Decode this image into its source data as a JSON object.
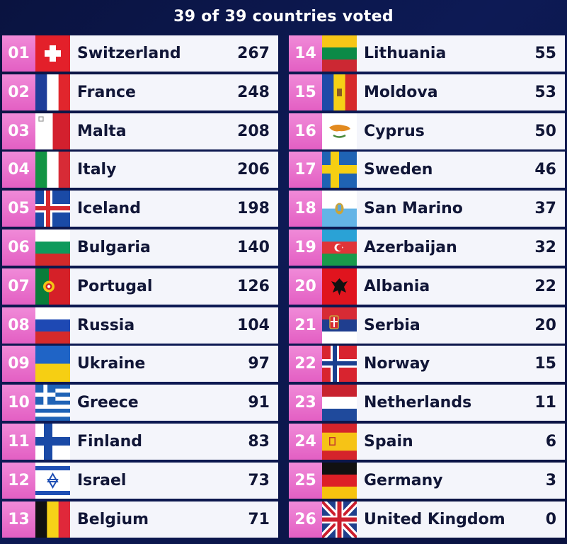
{
  "header": {
    "title": "39 of 39 countries voted"
  },
  "left": [
    {
      "rank": "01",
      "country": "Switzerland",
      "points": "267",
      "flag": "switzerland-flag-icon"
    },
    {
      "rank": "02",
      "country": "France",
      "points": "248",
      "flag": "france-flag-icon"
    },
    {
      "rank": "03",
      "country": "Malta",
      "points": "208",
      "flag": "malta-flag-icon"
    },
    {
      "rank": "04",
      "country": "Italy",
      "points": "206",
      "flag": "italy-flag-icon"
    },
    {
      "rank": "05",
      "country": "Iceland",
      "points": "198",
      "flag": "iceland-flag-icon"
    },
    {
      "rank": "06",
      "country": "Bulgaria",
      "points": "140",
      "flag": "bulgaria-flag-icon"
    },
    {
      "rank": "07",
      "country": "Portugal",
      "points": "126",
      "flag": "portugal-flag-icon"
    },
    {
      "rank": "08",
      "country": "Russia",
      "points": "104",
      "flag": "russia-flag-icon"
    },
    {
      "rank": "09",
      "country": "Ukraine",
      "points": "97",
      "flag": "ukraine-flag-icon"
    },
    {
      "rank": "10",
      "country": "Greece",
      "points": "91",
      "flag": "greece-flag-icon"
    },
    {
      "rank": "11",
      "country": "Finland",
      "points": "83",
      "flag": "finland-flag-icon"
    },
    {
      "rank": "12",
      "country": "Israel",
      "points": "73",
      "flag": "israel-flag-icon"
    },
    {
      "rank": "13",
      "country": "Belgium",
      "points": "71",
      "flag": "belgium-flag-icon"
    }
  ],
  "right": [
    {
      "rank": "14",
      "country": "Lithuania",
      "points": "55",
      "flag": "lithuania-flag-icon"
    },
    {
      "rank": "15",
      "country": "Moldova",
      "points": "53",
      "flag": "moldova-flag-icon"
    },
    {
      "rank": "16",
      "country": "Cyprus",
      "points": "50",
      "flag": "cyprus-flag-icon"
    },
    {
      "rank": "17",
      "country": "Sweden",
      "points": "46",
      "flag": "sweden-flag-icon"
    },
    {
      "rank": "18",
      "country": "San Marino",
      "points": "37",
      "flag": "san-marino-flag-icon"
    },
    {
      "rank": "19",
      "country": "Azerbaijan",
      "points": "32",
      "flag": "azerbaijan-flag-icon"
    },
    {
      "rank": "20",
      "country": "Albania",
      "points": "22",
      "flag": "albania-flag-icon"
    },
    {
      "rank": "21",
      "country": "Serbia",
      "points": "20",
      "flag": "serbia-flag-icon"
    },
    {
      "rank": "22",
      "country": "Norway",
      "points": "15",
      "flag": "norway-flag-icon"
    },
    {
      "rank": "23",
      "country": "Netherlands",
      "points": "11",
      "flag": "netherlands-flag-icon"
    },
    {
      "rank": "24",
      "country": "Spain",
      "points": "6",
      "flag": "spain-flag-icon"
    },
    {
      "rank": "25",
      "country": "Germany",
      "points": "3",
      "flag": "germany-flag-icon"
    },
    {
      "rank": "26",
      "country": "United Kingdom",
      "points": "0",
      "flag": "united-kingdom-flag-icon"
    }
  ]
}
